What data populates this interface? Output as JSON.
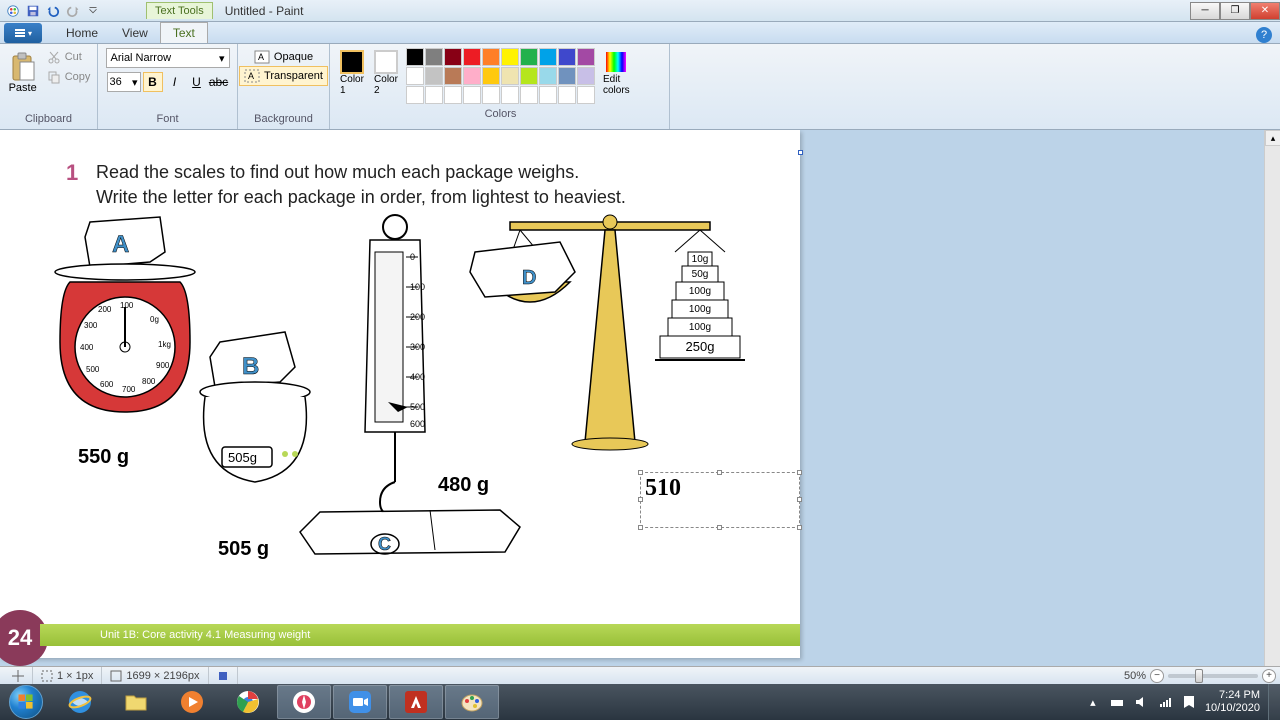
{
  "window": {
    "title": "Untitled - Paint",
    "text_tools_tab": "Text Tools"
  },
  "tabs": {
    "home": "Home",
    "view": "View",
    "text": "Text"
  },
  "ribbon": {
    "clipboard": {
      "label": "Clipboard",
      "paste": "Paste",
      "cut": "Cut",
      "copy": "Copy"
    },
    "font": {
      "label": "Font",
      "family": "Arial Narrow",
      "size": "36"
    },
    "background": {
      "label": "Background",
      "opaque": "Opaque",
      "transparent": "Transparent"
    },
    "colors": {
      "label": "Colors",
      "color1_label": "Color\n1",
      "color2_label": "Color\n2",
      "edit_label": "Edit\ncolors",
      "color1": "#000000",
      "color2": "#ffffff",
      "row1": [
        "#000000",
        "#7f7f7f",
        "#880015",
        "#ed1c24",
        "#ff7f27",
        "#fff200",
        "#22b14c",
        "#00a2e8",
        "#3f48cc",
        "#a349a4"
      ],
      "row2": [
        "#ffffff",
        "#c3c3c3",
        "#b97a57",
        "#ffaec9",
        "#ffc90e",
        "#efe4b0",
        "#b5e61d",
        "#99d9ea",
        "#7092be",
        "#c8bfe7"
      ],
      "row3": [
        "#ffffff",
        "#ffffff",
        "#ffffff",
        "#ffffff",
        "#ffffff",
        "#ffffff",
        "#ffffff",
        "#ffffff",
        "#ffffff",
        "#ffffff"
      ]
    }
  },
  "document": {
    "question_num": "1",
    "line1": "Read the scales to find out how much each package weighs.",
    "line2": "Write the letter for each package in order, from lightest to heaviest.",
    "weight_a": "550 g",
    "weight_b": "505 g",
    "weight_c": "480 g",
    "text_input": "510",
    "page_number": "24",
    "footer": "Unit 1B: Core activity 4.1 Measuring weight",
    "scale_a": {
      "marks": [
        "100",
        "200",
        "300",
        "400",
        "500",
        "600",
        "700",
        "800",
        "900",
        "1kg",
        "0g"
      ]
    },
    "scale_b_display": "505g",
    "scale_c": {
      "marks": [
        "0",
        "100",
        "200",
        "300",
        "400",
        "500",
        "600"
      ]
    },
    "balance_weights": [
      "10g",
      "50g",
      "100g",
      "100g",
      "100g",
      "250g"
    ],
    "colors": {
      "scale_red": "#d63838",
      "balance_gold": "#e8c858",
      "letter_blue": "#4090c8",
      "badge": "#8a3a5a",
      "footer_green": "#a8cc48"
    }
  },
  "status": {
    "cursor_pos": "1 × 1px",
    "canvas_size": "1699 × 2196px",
    "zoom": "50%"
  },
  "tray": {
    "time": "7:24 PM",
    "date": "10/10/2020"
  }
}
